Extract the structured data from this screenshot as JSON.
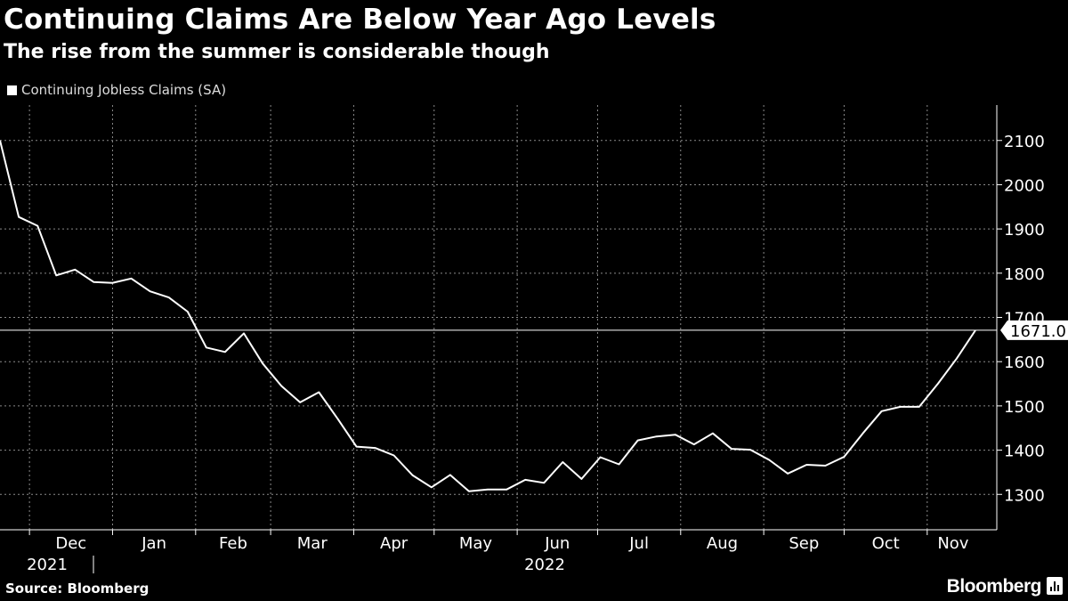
{
  "header": {
    "title": "Continuing Claims Are Below Year Ago Levels",
    "subtitle": "The rise from the summer is considerable though"
  },
  "footer": {
    "source": "Source: Bloomberg",
    "brand": "Bloomberg"
  },
  "colors": {
    "background": "#000000",
    "line": "#ffffff",
    "grid": "#888888"
  },
  "chart_data": {
    "type": "line",
    "title": "Continuing Claims Are Below Year Ago Levels",
    "subtitle": "The rise from the summer is considerable though",
    "xlabel": "",
    "ylabel": "",
    "ylim": [
      1220,
      2180
    ],
    "yticks": [
      1300,
      1400,
      1500,
      1600,
      1700,
      1800,
      1900,
      2000,
      2100
    ],
    "grid": true,
    "legend_position": "top-left",
    "x_month_labels": [
      "Dec",
      "Jan",
      "Feb",
      "Mar",
      "Apr",
      "May",
      "Jun",
      "Jul",
      "Aug",
      "Sep",
      "Oct",
      "Nov"
    ],
    "x_year_labels": [
      "2021",
      "2022"
    ],
    "last_value_label": "1671.0",
    "series": [
      {
        "name": "Continuing Jobless Claims (SA)",
        "x": [
          "2021-11-20",
          "2021-11-27",
          "2021-12-04",
          "2021-12-11",
          "2021-12-18",
          "2021-12-25",
          "2022-01-01",
          "2022-01-08",
          "2022-01-15",
          "2022-01-22",
          "2022-01-29",
          "2022-02-05",
          "2022-02-12",
          "2022-02-19",
          "2022-02-26",
          "2022-03-05",
          "2022-03-12",
          "2022-03-19",
          "2022-03-26",
          "2022-04-02",
          "2022-04-09",
          "2022-04-16",
          "2022-04-23",
          "2022-04-30",
          "2022-05-07",
          "2022-05-14",
          "2022-05-21",
          "2022-05-28",
          "2022-06-04",
          "2022-06-11",
          "2022-06-18",
          "2022-06-25",
          "2022-07-02",
          "2022-07-09",
          "2022-07-16",
          "2022-07-23",
          "2022-07-30",
          "2022-08-06",
          "2022-08-13",
          "2022-08-20",
          "2022-08-27",
          "2022-09-03",
          "2022-09-10",
          "2022-09-17",
          "2022-09-24",
          "2022-10-01",
          "2022-10-08",
          "2022-10-15",
          "2022-10-22",
          "2022-10-29",
          "2022-11-05",
          "2022-11-12",
          "2022-11-19"
        ],
        "values": [
          2100,
          1927,
          1907,
          1795,
          1808,
          1780,
          1778,
          1788,
          1759,
          1745,
          1713,
          1632,
          1622,
          1664,
          1596,
          1545,
          1508,
          1531,
          1471,
          1408,
          1405,
          1388,
          1343,
          1316,
          1344,
          1307,
          1311,
          1311,
          1333,
          1326,
          1373,
          1335,
          1384,
          1368,
          1422,
          1431,
          1435,
          1413,
          1438,
          1403,
          1401,
          1378,
          1347,
          1367,
          1365,
          1385,
          1438,
          1488,
          1498,
          1498,
          1550,
          1607,
          1671
        ]
      }
    ]
  }
}
